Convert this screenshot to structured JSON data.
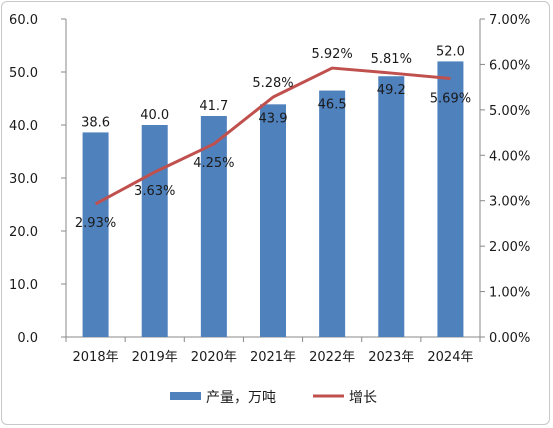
{
  "chart_data": {
    "type": "bar",
    "categories": [
      "2018年",
      "2019年",
      "2020年",
      "2021年",
      "2022年",
      "2023年",
      "2024年"
    ],
    "series": [
      {
        "name": "产量，万吨",
        "type": "bar",
        "axis": "left",
        "values": [
          38.6,
          40.0,
          41.7,
          43.9,
          46.5,
          49.2,
          52.0
        ],
        "labels": [
          "38.6",
          "40.0",
          "41.7",
          "43.9",
          "46.5",
          "49.2",
          "52.0"
        ]
      },
      {
        "name": "增长",
        "type": "line",
        "axis": "right",
        "values": [
          2.93,
          3.63,
          4.25,
          5.28,
          5.92,
          5.81,
          5.69
        ],
        "labels": [
          "2.93%",
          "3.63%",
          "4.25%",
          "5.28%",
          "5.92%",
          "5.81%",
          "5.69%"
        ]
      }
    ],
    "y_left": {
      "ylim": [
        0,
        60
      ],
      "ticks": [
        "0.0",
        "10.0",
        "20.0",
        "30.0",
        "40.0",
        "50.0",
        "60.0"
      ]
    },
    "y_right": {
      "ylim": [
        0,
        7
      ],
      "ticks": [
        "0.00%",
        "1.00%",
        "2.00%",
        "3.00%",
        "4.00%",
        "5.00%",
        "6.00%",
        "7.00%"
      ]
    },
    "grid": false,
    "legend": "bottom",
    "colors": {
      "bar": "#4f81bd",
      "line": "#c0504d",
      "axis": "#888888",
      "frame": "#c8c8c8"
    }
  }
}
